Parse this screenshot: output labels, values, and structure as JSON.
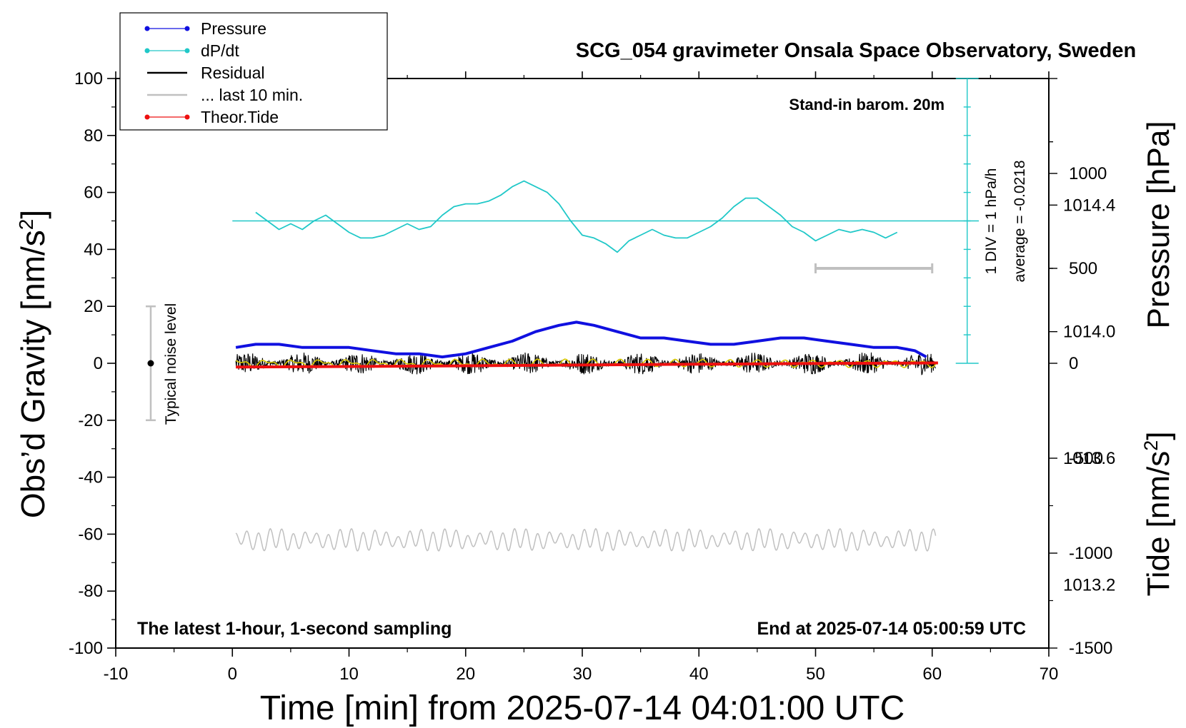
{
  "chart_data": {
    "type": "line",
    "title": "SCG_054 gravimeter Onsala Space Observatory, Sweden",
    "xlabel": "Time [min] from 2025-07-14 04:01:00 UTC",
    "ylabel_left_main": "Obs’d Gravity [nm/s",
    "ylabel_left_sup": "2",
    "ylabel_left_end": "]",
    "ylabel_right_pressure": "Pressure [hPa]",
    "ylabel_right_tide_main": "Tide [nm/s",
    "ylabel_right_tide_sup": "2",
    "ylabel_right_tide_end": "]",
    "xlim": [
      -10,
      70
    ],
    "ylim_left": [
      -100,
      100
    ],
    "ylim_pressure": [
      1013.0,
      1014.8
    ],
    "ylim_tide": [
      -1500,
      1500
    ],
    "x_ticks": [
      "-10",
      "0",
      "10",
      "20",
      "30",
      "40",
      "50",
      "60",
      "70"
    ],
    "y_ticks_left": [
      "100",
      "80",
      "60",
      "40",
      "20",
      "0",
      "-20",
      "-40",
      "-60",
      "-80",
      "-100"
    ],
    "y_ticks_pressure": [
      "1014.4",
      "1014.0",
      "1013.6",
      "1013.2"
    ],
    "y_ticks_tide": [
      "1000",
      "500",
      "0",
      "-500",
      "-1000",
      "-1500"
    ],
    "annotations": {
      "barometer": "Stand-in barom. 20m",
      "scale_div": "1 DIV = 1 hPa/h",
      "average": "average = -0.0218",
      "noise": "Typical noise level",
      "bottom_left": "The latest 1-hour, 1-second sampling",
      "bottom_right": "End at 2025-07-14 05:00:59 UTC"
    },
    "legend": {
      "placement": "top-left",
      "items": [
        {
          "label": "Pressure",
          "color": "#1010e0",
          "marker": true
        },
        {
          "label": "dP/dt",
          "color": "#20c8c8",
          "marker": true
        },
        {
          "label": "Residual",
          "color": "#000000",
          "marker": false
        },
        {
          "label": "... last 10 min.",
          "color": "#c0c0c0",
          "marker": false
        },
        {
          "label": "Theor.Tide",
          "color": "#ee1010",
          "marker": true
        }
      ]
    },
    "series": [
      {
        "name": "Pressure",
        "color": "#1010e0",
        "axis": "pressure",
        "x": [
          0.3,
          2,
          4,
          6,
          8,
          10,
          12,
          14,
          16,
          18,
          20,
          22,
          24,
          26,
          28,
          29.5,
          31,
          33,
          35,
          37,
          39,
          41,
          43,
          45,
          47,
          49,
          51,
          53,
          55,
          57,
          58.5,
          59.5
        ],
        "y": [
          1013.95,
          1013.96,
          1013.96,
          1013.95,
          1013.95,
          1013.95,
          1013.94,
          1013.93,
          1013.93,
          1013.92,
          1013.93,
          1013.95,
          1013.97,
          1014.0,
          1014.02,
          1014.03,
          1014.02,
          1014.0,
          1013.98,
          1013.98,
          1013.97,
          1013.96,
          1013.96,
          1013.97,
          1013.98,
          1013.98,
          1013.97,
          1013.96,
          1013.95,
          1013.95,
          1013.94,
          1013.92
        ]
      },
      {
        "name": "dP/dt",
        "color": "#20c8c8",
        "axis": "left",
        "x": [
          2,
          3,
          4,
          5,
          6,
          7,
          8,
          9,
          10,
          11,
          12,
          13,
          14,
          15,
          16,
          17,
          18,
          19,
          20,
          21,
          22,
          23,
          24,
          25,
          26,
          27,
          28,
          29,
          30,
          31,
          32,
          33,
          34,
          35,
          36,
          37,
          38,
          39,
          40,
          41,
          42,
          43,
          44,
          45,
          46,
          47,
          48,
          49,
          50,
          51,
          52,
          53,
          54,
          55,
          56,
          57
        ],
        "y": [
          53,
          50,
          47,
          49,
          47,
          50,
          52,
          49,
          46,
          44,
          44,
          45,
          47,
          49,
          47,
          48,
          52,
          55,
          56,
          56,
          57,
          59,
          62,
          64,
          62,
          60,
          56,
          50,
          45,
          44,
          42,
          39,
          43,
          45,
          47,
          45,
          44,
          44,
          46,
          48,
          51,
          55,
          58,
          58,
          55,
          52,
          48,
          46,
          43,
          45,
          47,
          46,
          47,
          46,
          44,
          46
        ]
      },
      {
        "name": "Theor.Tide",
        "color": "#ee1010",
        "axis": "tide",
        "x": [
          0.3,
          10,
          20,
          30,
          40,
          50,
          60.5
        ],
        "y": [
          -20,
          -17,
          -13,
          -9,
          -5,
          -1,
          2
        ]
      }
    ],
    "dpdt_average_line": 50,
    "last_10_min_bar": {
      "x": [
        50,
        60
      ],
      "tide_value": 500
    },
    "noise_bar": {
      "x": -7,
      "y": [
        -20,
        20
      ]
    },
    "residual_band": {
      "x_range": [
        0.3,
        60.3
      ],
      "center": 0,
      "amplitude": 4
    },
    "lowpass_band": {
      "x_range": [
        0.3,
        60.3
      ],
      "center": -62,
      "amplitude": 3.5
    }
  }
}
